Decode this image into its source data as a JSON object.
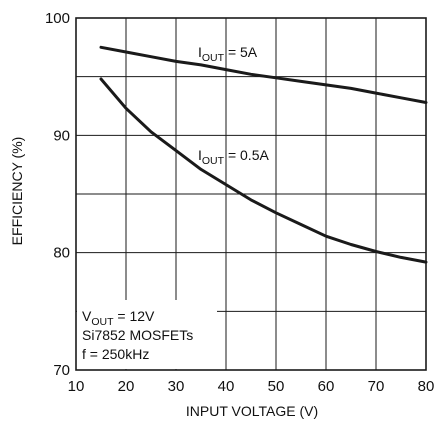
{
  "chart_data": {
    "type": "line",
    "title": "",
    "xlabel": "INPUT VOLTAGE (V)",
    "ylabel": "EFFICIENCY (%)",
    "xlim": [
      10,
      80
    ],
    "ylim": [
      70,
      100
    ],
    "xticks": [
      10,
      20,
      30,
      40,
      50,
      60,
      70,
      80
    ],
    "yticks": [
      70,
      80,
      90,
      100
    ],
    "grid": true,
    "series": [
      {
        "name": "IOUT = 5A",
        "x": [
          15,
          20,
          25,
          30,
          35,
          40,
          45,
          50,
          55,
          60,
          65,
          70,
          75,
          80
        ],
        "y": [
          97.5,
          97.1,
          96.7,
          96.3,
          96.0,
          95.6,
          95.2,
          94.9,
          94.6,
          94.3,
          94.0,
          93.6,
          93.2,
          92.8
        ]
      },
      {
        "name": "IOUT = 0.5A",
        "x": [
          15,
          20,
          25,
          30,
          35,
          40,
          45,
          50,
          55,
          60,
          65,
          70,
          75,
          80
        ],
        "y": [
          94.8,
          92.3,
          90.3,
          88.7,
          87.1,
          85.8,
          84.5,
          83.4,
          82.4,
          81.4,
          80.7,
          80.1,
          79.6,
          79.2
        ]
      }
    ],
    "annotations": {
      "label_5a": {
        "main": "I",
        "sub": "OUT",
        "rest": " = 5A"
      },
      "label_05a": {
        "main": "I",
        "sub": "OUT",
        "rest": " = 0.5A"
      },
      "box_line1": {
        "main": "V",
        "sub": "OUT",
        "rest": " = 12V"
      },
      "box_line2": "Si7852 MOSFETs",
      "box_line3": "f = 250kHz"
    },
    "colors": {
      "line": "#1a1a1a",
      "grid": "#1a1a1a",
      "frame": "#1a1a1a"
    }
  }
}
